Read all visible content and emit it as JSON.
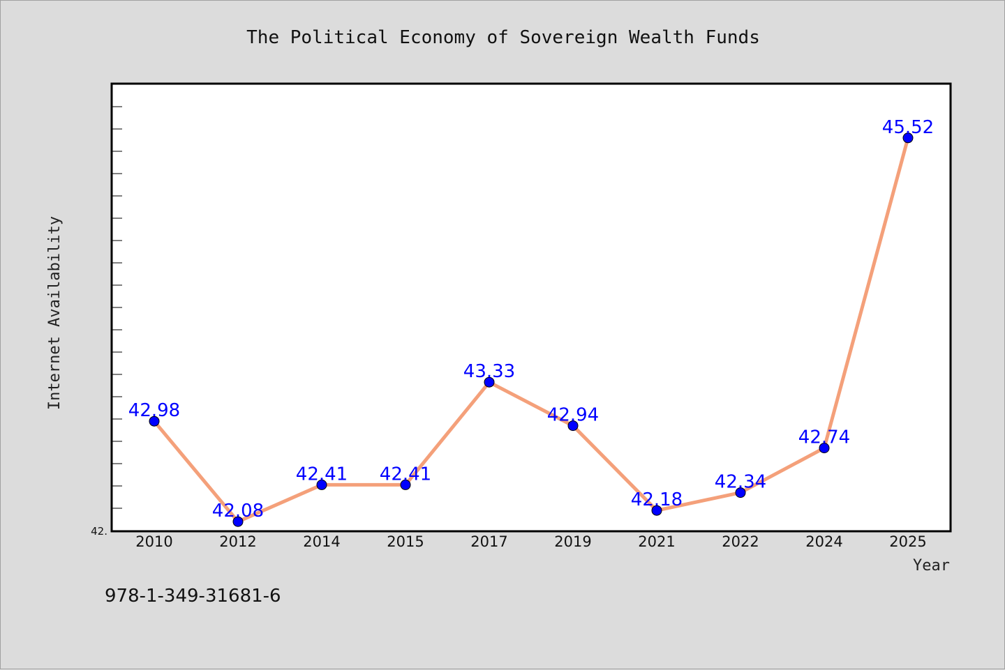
{
  "chart_data": {
    "type": "line",
    "title": "The Political Economy of Sovereign Wealth Funds",
    "xlabel": "Year",
    "ylabel": "Internet Availability",
    "categories": [
      "2010",
      "2012",
      "2014",
      "2015",
      "2017",
      "2019",
      "2021",
      "2022",
      "2024",
      "2025"
    ],
    "series": [
      {
        "values": [
          42.98,
          42.08,
          42.41,
          42.41,
          43.33,
          42.94,
          42.18,
          42.34,
          42.74,
          45.52
        ],
        "labels": [
          "42.98",
          "42.08",
          "42.41",
          "42.41",
          "43.33",
          "42.94",
          "42.18",
          "42.34",
          "42.74",
          "45.52"
        ],
        "line_color": "#f4a07a",
        "marker_color": "#0000ff"
      }
    ],
    "ylim": [
      42.0,
      46.0
    ],
    "y_tick_label": "42.",
    "grid": false,
    "legend": "none"
  },
  "footer": {
    "isbn": "978-1-349-31681-6"
  }
}
